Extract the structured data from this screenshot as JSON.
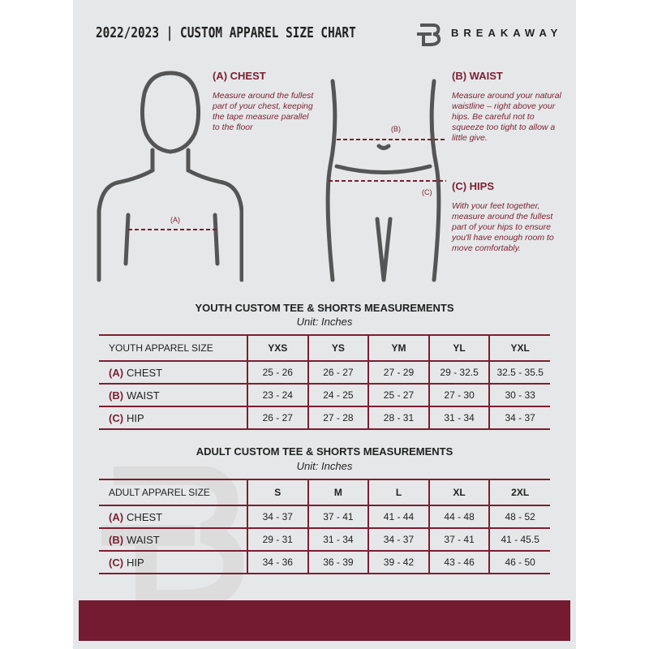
{
  "header": {
    "title": "2022/2023  |  CUSTOM APPAREL SIZE CHART",
    "brand": "BREAKAWAY"
  },
  "colors": {
    "accent": "#741b31",
    "background": "#e6e7e8"
  },
  "figures": {
    "chest_marker": "(A)",
    "waist_marker": "(B)",
    "hip_marker": "(C)"
  },
  "instructions": {
    "chest": {
      "title": "(A) CHEST",
      "text": "Measure around the fullest part of your chest, keeping the tape measure parallel to the floor"
    },
    "waist": {
      "title": "(B) WAIST",
      "text": "Measure around your natural waistline – right above your hips. Be careful not to squeeze too tight to allow a little give."
    },
    "hips": {
      "title": "(C) HIPS",
      "text": "With your feet together, measure around the fullest part of your hips to ensure you'll have enough room to move comfortably."
    }
  },
  "youth": {
    "title": "YOUTH CUSTOM TEE & SHORTS MEASUREMENTS",
    "unit": "Unit: Inches",
    "size_label": "YOUTH APPAREL SIZE",
    "sizes": [
      "YXS",
      "YS",
      "YM",
      "YL",
      "YXL"
    ],
    "rows": [
      {
        "marker": "(A)",
        "label": "CHEST",
        "values": [
          "25 - 26",
          "26 - 27",
          "27 - 29",
          "29 - 32.5",
          "32.5 - 35.5"
        ]
      },
      {
        "marker": "(B)",
        "label": "WAIST",
        "values": [
          "23 - 24",
          "24 - 25",
          "25 - 27",
          "27 - 30",
          "30 - 33"
        ]
      },
      {
        "marker": "(C)",
        "label": "HIP",
        "values": [
          "26 - 27",
          "27 - 28",
          "28 - 31",
          "31 - 34",
          "34 - 37"
        ]
      }
    ]
  },
  "adult": {
    "title": "ADULT CUSTOM TEE & SHORTS MEASUREMENTS",
    "unit": "Unit: Inches",
    "size_label": "ADULT APPAREL SIZE",
    "sizes": [
      "S",
      "M",
      "L",
      "XL",
      "2XL"
    ],
    "rows": [
      {
        "marker": "(A)",
        "label": "CHEST",
        "values": [
          "34 - 37",
          "37 - 41",
          "41 - 44",
          "44 - 48",
          "48 - 52"
        ]
      },
      {
        "marker": "(B)",
        "label": "WAIST",
        "values": [
          "29 - 31",
          "31 - 34",
          "34 - 37",
          "37 - 41",
          "41 - 45.5"
        ]
      },
      {
        "marker": "(C)",
        "label": "HIP",
        "values": [
          "34 - 36",
          "36 - 39",
          "39 - 42",
          "43 - 46",
          "46 - 50"
        ]
      }
    ]
  }
}
